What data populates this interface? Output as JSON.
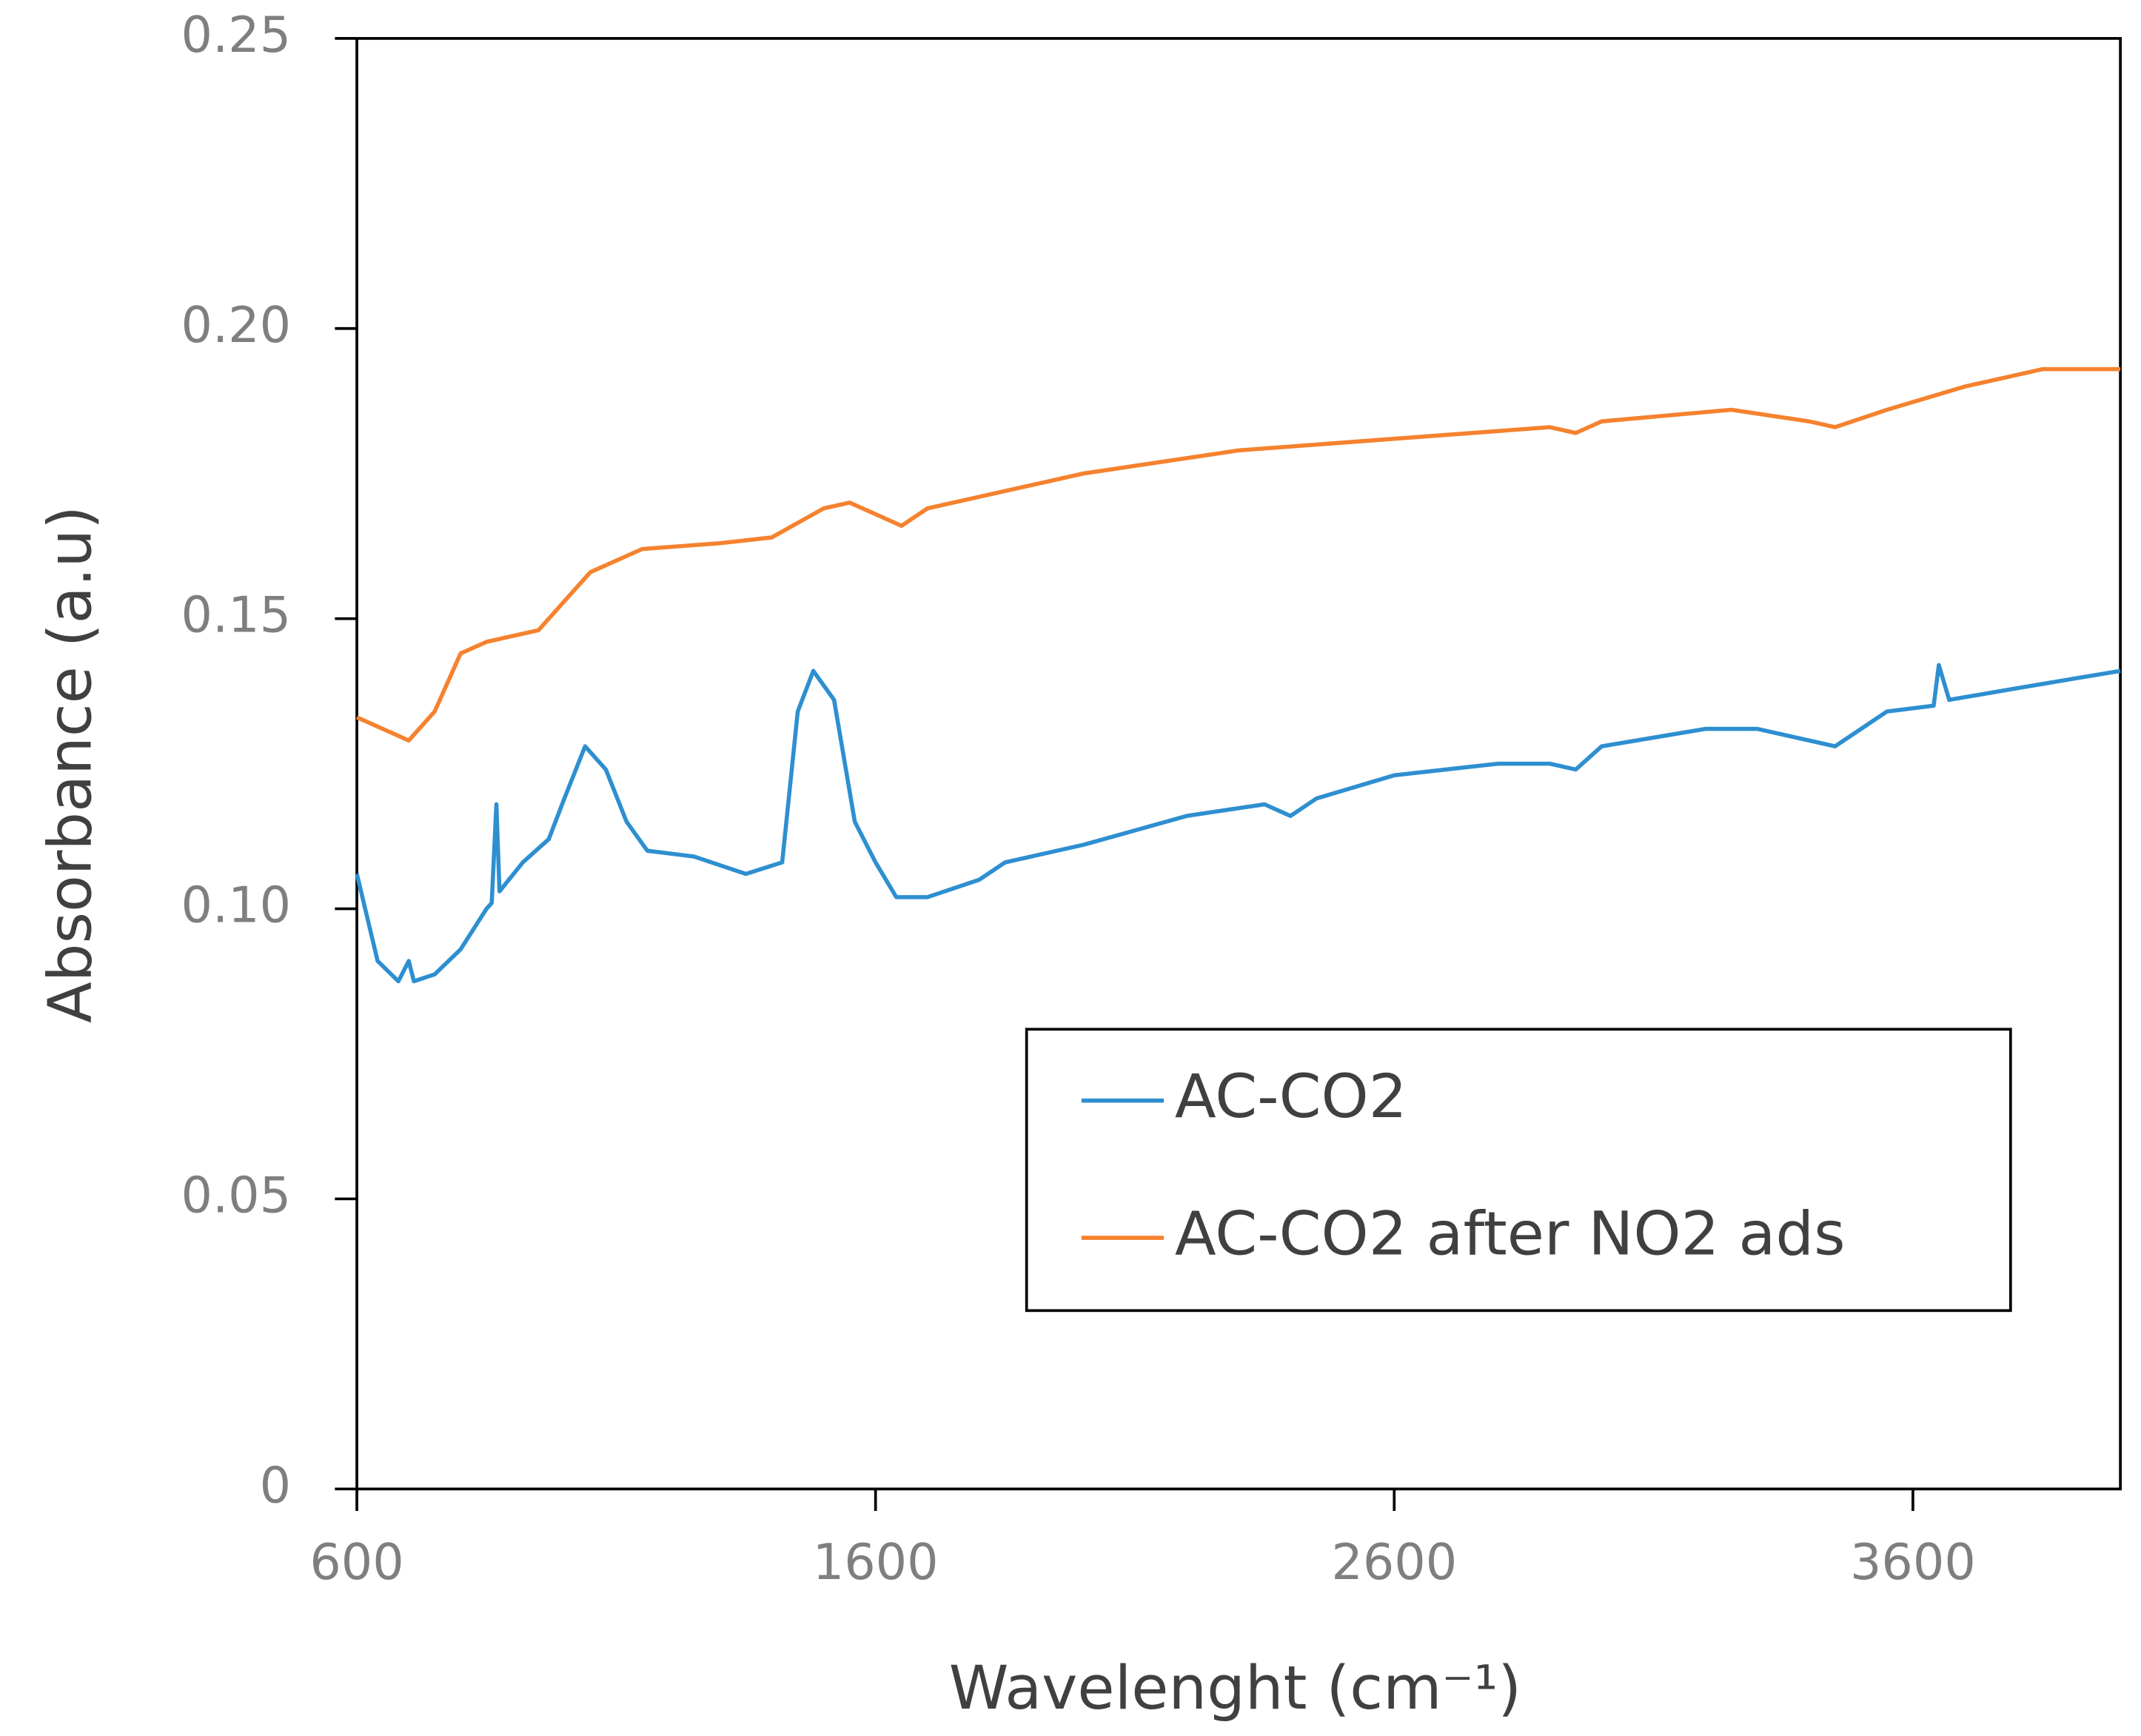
{
  "chart_data": {
    "type": "line",
    "xlabel": "Wavelenght (cm⁻¹)",
    "ylabel": "Absorbance  (a.u)",
    "xlim": [
      600,
      4000
    ],
    "ylim": [
      0,
      0.25
    ],
    "xticks": [
      600,
      1600,
      2600,
      3600
    ],
    "yticks": [
      0,
      0.05,
      {
        "value": 0.1,
        "label": "0.10"
      },
      0.15,
      {
        "value": 0.2,
        "label": "0.20"
      },
      0.25
    ],
    "legend": "lower right",
    "series": [
      {
        "name": "AC-CO2",
        "color": "#2e8fd0",
        "x": [
          600,
          640,
          680,
          700,
          710,
          750,
          800,
          850,
          860,
          869,
          875,
          920,
          970,
          1000,
          1040,
          1080,
          1120,
          1160,
          1250,
          1350,
          1420,
          1450,
          1480,
          1520,
          1560,
          1600,
          1640,
          1700,
          1800,
          1850,
          2000,
          2200,
          2350,
          2400,
          2450,
          2600,
          2800,
          2900,
          2950,
          3000,
          3200,
          3300,
          3450,
          3550,
          3640,
          3650,
          3670,
          3800,
          4000
        ],
        "values": [
          0.106,
          0.091,
          0.0875,
          0.091,
          0.0875,
          0.0887,
          0.093,
          0.1,
          0.101,
          0.118,
          0.103,
          0.108,
          0.112,
          0.119,
          0.128,
          0.124,
          0.115,
          0.11,
          0.109,
          0.106,
          0.108,
          0.134,
          0.141,
          0.136,
          0.115,
          0.108,
          0.102,
          0.102,
          0.105,
          0.108,
          0.111,
          0.116,
          0.118,
          0.116,
          0.119,
          0.123,
          0.125,
          0.125,
          0.124,
          0.128,
          0.131,
          0.131,
          0.128,
          0.134,
          0.135,
          0.142,
          0.136,
          0.138,
          0.141
        ]
      },
      {
        "name": "AC-CO2 after NO2 ads",
        "color": "#f5822e",
        "x": [
          600,
          700,
          750,
          800,
          850,
          950,
          1050,
          1150,
          1300,
          1400,
          1500,
          1550,
          1650,
          1700,
          1800,
          2000,
          2300,
          2600,
          2900,
          2950,
          3000,
          3250,
          3400,
          3450,
          3550,
          3700,
          3850,
          4000
        ],
        "values": [
          0.133,
          0.129,
          0.134,
          0.144,
          0.146,
          0.148,
          0.158,
          0.162,
          0.163,
          0.164,
          0.169,
          0.17,
          0.166,
          0.169,
          0.171,
          0.175,
          0.179,
          0.181,
          0.183,
          0.182,
          0.184,
          0.186,
          0.184,
          0.183,
          0.186,
          0.19,
          0.193,
          0.193
        ]
      }
    ]
  }
}
